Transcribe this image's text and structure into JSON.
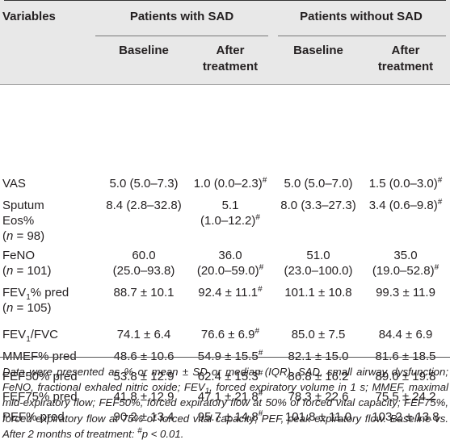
{
  "header": {
    "variables": "Variables",
    "group1": "Patients with SAD",
    "group2": "Patients without SAD",
    "baseline": "Baseline",
    "after_line1": "After",
    "after_line2": "treatment"
  },
  "rows": [
    {
      "var": [
        "VAS"
      ],
      "b1": [
        "5.0 (5.0–7.3)"
      ],
      "a1": [
        "1.0 (0.0–2.3)#"
      ],
      "b2": [
        "5.0 (5.0–7.0)"
      ],
      "a2": [
        "1.5 (0.0–3.0)#"
      ]
    },
    {
      "var": [
        "Sputum",
        "Eos%",
        "(n = 98)"
      ],
      "b1": [
        "8.4 (2.8–32.8)"
      ],
      "a1": [
        "5.1",
        "(1.0–12.2)#"
      ],
      "b2": [
        "8.0 (3.3–27.3)"
      ],
      "a2": [
        "3.4 (0.6–9.8)#"
      ]
    },
    {
      "var": [
        "FeNO",
        "(n = 101)"
      ],
      "b1": [
        "60.0",
        "(25.0–93.8)"
      ],
      "a1": [
        "36.0",
        "(20.0–59.0)#"
      ],
      "b2": [
        "51.0",
        "(23.0–100.0)"
      ],
      "a2": [
        "35.0",
        "(19.0–52.8)#"
      ]
    },
    {
      "var": [
        "FEV1% pred",
        "(n = 105)"
      ],
      "b1": [
        "88.7 ± 10.1"
      ],
      "a1": [
        "92.4 ± 11.1#"
      ],
      "b2": [
        "101.1 ± 10.8"
      ],
      "a2": [
        "99.3 ± 11.9"
      ]
    },
    {
      "var": [
        "FEV1/FVC"
      ],
      "b1": [
        "74.1 ± 6.4"
      ],
      "a1": [
        "76.6 ± 6.9#"
      ],
      "b2": [
        "85.0 ± 7.5"
      ],
      "a2": [
        "84.4 ± 6.9"
      ]
    },
    {
      "var": [
        "MMEF% pred"
      ],
      "b1": [
        "48.6 ± 10.6"
      ],
      "a1": [
        "54.9 ± 15.5#"
      ],
      "b2": [
        "82.1 ± 15.0"
      ],
      "a2": [
        "81.6 ± 18.5"
      ]
    },
    {
      "var": [
        "FEF50% pred"
      ],
      "b1": [
        "53.8 ± 12.9"
      ],
      "a1": [
        "62.4 ± 15.3#"
      ],
      "b2": [
        "86.8 ± 16.2"
      ],
      "a2": [
        "89.0 ± 19.8"
      ]
    },
    {
      "var": [
        "FEF75% pred"
      ],
      "b1": [
        "41.8 ± 12.9"
      ],
      "a1": [
        "47.1 ± 21.8#"
      ],
      "b2": [
        "78.3 ± 22.6"
      ],
      "a2": [
        "75.5 ± 24.2"
      ]
    },
    {
      "var": [
        "PEF% pred"
      ],
      "b1": [
        "90.2 ± 13.4"
      ],
      "a1": [
        "95.7 ± 14.8#"
      ],
      "b2": [
        "101.8 ± 11.0"
      ],
      "a2": [
        "103.2 ± 13.8"
      ]
    }
  ],
  "footnote": "Data were presented as % or mean ± SD or median (IQR). SAD, small airway dysfunction; FeNO, fractional exhaled nitric oxide; FEV1, forced expiratory volume in 1 s; MMEF, maximal mid-expiratory flow; FEF50%, forced expiratory flow at 50% of forced vital capacity; FEF75%, forced expiratory flow at 75% of forced vital capacity; PEF, peak expiratory flow. Baseline vs. After 2 months of treatment: #p < 0.01."
}
